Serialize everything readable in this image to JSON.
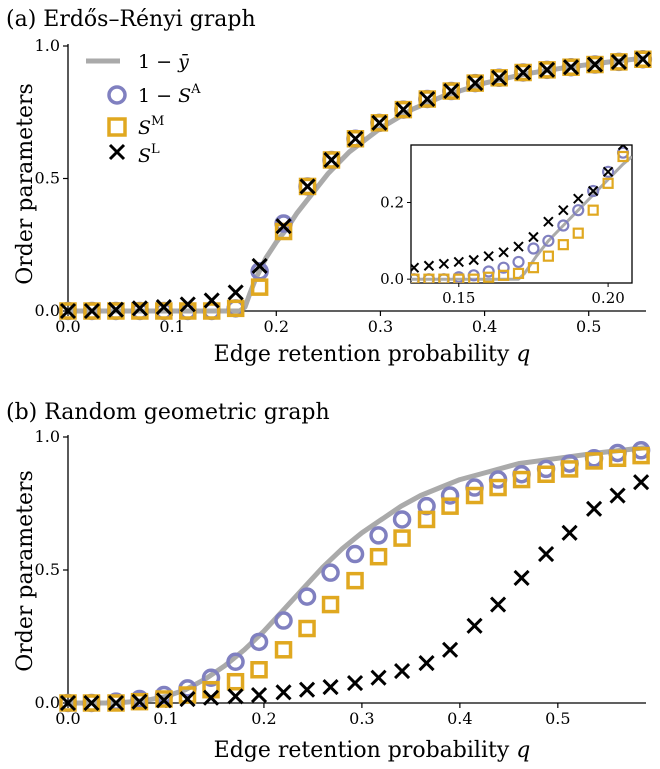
{
  "chart_data": [
    {
      "type": "scatter",
      "panel_title": "(a) Erdős–Rényi graph",
      "xlabel": "Edge retention probability",
      "xlabel_symbol": "q",
      "ylabel": "Order parameters",
      "xlim": [
        0.0,
        0.555
      ],
      "ylim": [
        0.0,
        1.0
      ],
      "xticks": [
        "0.0",
        "0.1",
        "0.2",
        "0.3",
        "0.4",
        "0.5"
      ],
      "yticks": [
        "0.0",
        "0.5",
        "1.0"
      ],
      "legend": {
        "position": "top-left",
        "entries": [
          "1 − ȳ",
          "1 − S^A",
          "S^M",
          "S^L"
        ]
      },
      "series": [
        {
          "name": "1 − ȳ",
          "style": "line",
          "color": "#aaaaaa",
          "x": [
            0.0,
            0.155,
            0.165,
            0.17,
            0.175,
            0.18,
            0.19,
            0.2,
            0.21,
            0.22,
            0.23,
            0.25,
            0.27,
            0.3,
            0.33,
            0.36,
            0.4,
            0.44,
            0.48,
            0.52,
            0.555
          ],
          "y": [
            0.0,
            0.0,
            0.0,
            0.015,
            0.07,
            0.12,
            0.2,
            0.26,
            0.31,
            0.37,
            0.42,
            0.52,
            0.6,
            0.69,
            0.76,
            0.81,
            0.86,
            0.895,
            0.92,
            0.94,
            0.955
          ]
        },
        {
          "name": "1 − S^A",
          "style": "circle",
          "color": "#8080c0",
          "x": [
            0.0,
            0.023,
            0.046,
            0.069,
            0.092,
            0.115,
            0.138,
            0.161,
            0.184,
            0.207,
            0.23,
            0.253,
            0.276,
            0.299,
            0.322,
            0.345,
            0.368,
            0.391,
            0.414,
            0.437,
            0.46,
            0.483,
            0.506,
            0.529,
            0.552
          ],
          "y": [
            0.0,
            0.0,
            0.0,
            0.0,
            0.0,
            0.0,
            0.0,
            0.01,
            0.15,
            0.33,
            0.47,
            0.57,
            0.65,
            0.71,
            0.76,
            0.8,
            0.83,
            0.86,
            0.88,
            0.9,
            0.91,
            0.92,
            0.93,
            0.94,
            0.95
          ]
        },
        {
          "name": "S^M",
          "style": "square",
          "color": "#e0a820",
          "x": [
            0.0,
            0.023,
            0.046,
            0.069,
            0.092,
            0.115,
            0.138,
            0.161,
            0.184,
            0.207,
            0.23,
            0.253,
            0.276,
            0.299,
            0.322,
            0.345,
            0.368,
            0.391,
            0.414,
            0.437,
            0.46,
            0.483,
            0.506,
            0.529,
            0.552
          ],
          "y": [
            0.0,
            0.0,
            0.0,
            0.0,
            0.0,
            0.0,
            0.0,
            0.01,
            0.09,
            0.3,
            0.47,
            0.57,
            0.65,
            0.71,
            0.76,
            0.8,
            0.83,
            0.86,
            0.88,
            0.9,
            0.91,
            0.92,
            0.93,
            0.94,
            0.95
          ]
        },
        {
          "name": "S^L",
          "style": "x",
          "color": "#000000",
          "x": [
            0.0,
            0.023,
            0.046,
            0.069,
            0.092,
            0.115,
            0.138,
            0.161,
            0.184,
            0.207,
            0.23,
            0.253,
            0.276,
            0.299,
            0.322,
            0.345,
            0.368,
            0.391,
            0.414,
            0.437,
            0.46,
            0.483,
            0.506,
            0.529,
            0.552
          ],
          "y": [
            0.0,
            0.0,
            0.005,
            0.01,
            0.015,
            0.025,
            0.04,
            0.07,
            0.17,
            0.32,
            0.47,
            0.57,
            0.65,
            0.71,
            0.76,
            0.8,
            0.83,
            0.86,
            0.88,
            0.9,
            0.91,
            0.92,
            0.93,
            0.94,
            0.95
          ]
        }
      ],
      "inset": {
        "xlim": [
          0.134,
          0.208
        ],
        "ylim": [
          -0.01,
          0.35
        ],
        "xticks": [
          "0.15",
          "0.20"
        ],
        "yticks": [
          "0.0",
          "0.2"
        ],
        "series": [
          {
            "name": "1 − ȳ",
            "style": "line",
            "color": "#aaaaaa",
            "x": [
              0.134,
              0.17,
              0.172,
              0.176,
              0.18,
              0.185,
              0.19,
              0.195,
              0.2,
              0.205,
              0.208
            ],
            "y": [
              0.0,
              0.0,
              0.015,
              0.06,
              0.1,
              0.14,
              0.18,
              0.22,
              0.26,
              0.3,
              0.32
            ]
          },
          {
            "name": "1 − S^A",
            "style": "circle",
            "color": "#8080c0",
            "x": [
              0.135,
              0.14,
              0.145,
              0.15,
              0.155,
              0.16,
              0.165,
              0.17,
              0.175,
              0.18,
              0.185,
              0.19,
              0.195,
              0.2,
              0.205
            ],
            "y": [
              0.0,
              0.0,
              0.0,
              0.005,
              0.01,
              0.02,
              0.03,
              0.045,
              0.08,
              0.1,
              0.14,
              0.18,
              0.23,
              0.28,
              0.33
            ]
          },
          {
            "name": "S^M",
            "style": "square",
            "color": "#e0a820",
            "x": [
              0.135,
              0.14,
              0.145,
              0.15,
              0.155,
              0.16,
              0.165,
              0.17,
              0.175,
              0.18,
              0.185,
              0.19,
              0.195,
              0.2,
              0.205
            ],
            "y": [
              0.0,
              0.0,
              0.0,
              0.0,
              0.0,
              0.005,
              0.01,
              0.015,
              0.03,
              0.06,
              0.09,
              0.12,
              0.18,
              0.25,
              0.32
            ]
          },
          {
            "name": "S^L",
            "style": "x",
            "color": "#000000",
            "x": [
              0.135,
              0.14,
              0.145,
              0.15,
              0.155,
              0.16,
              0.165,
              0.17,
              0.175,
              0.18,
              0.185,
              0.19,
              0.195,
              0.2,
              0.205
            ],
            "y": [
              0.03,
              0.035,
              0.04,
              0.045,
              0.05,
              0.06,
              0.07,
              0.085,
              0.11,
              0.15,
              0.18,
              0.21,
              0.23,
              0.28,
              0.35
            ]
          }
        ]
      }
    },
    {
      "type": "scatter",
      "panel_title": "(b) Random geometric graph",
      "xlabel": "Edge retention probability",
      "xlabel_symbol": "q",
      "ylabel": "Order parameters",
      "xlim": [
        0.0,
        0.59
      ],
      "ylim": [
        0.0,
        1.0
      ],
      "xticks": [
        "0.0",
        "0.1",
        "0.2",
        "0.3",
        "0.4",
        "0.5"
      ],
      "yticks": [
        "0.0",
        "0.5",
        "1.0"
      ],
      "series": [
        {
          "name": "1 − ȳ",
          "style": "line",
          "color": "#aaaaaa",
          "x": [
            0.0,
            0.05,
            0.08,
            0.1,
            0.12,
            0.14,
            0.16,
            0.18,
            0.2,
            0.22,
            0.24,
            0.26,
            0.28,
            0.3,
            0.32,
            0.34,
            0.36,
            0.38,
            0.4,
            0.43,
            0.46,
            0.5,
            0.54,
            0.59
          ],
          "y": [
            0.0,
            0.0,
            0.01,
            0.025,
            0.05,
            0.09,
            0.14,
            0.2,
            0.27,
            0.35,
            0.43,
            0.51,
            0.58,
            0.64,
            0.69,
            0.74,
            0.78,
            0.81,
            0.84,
            0.87,
            0.9,
            0.92,
            0.94,
            0.96
          ]
        },
        {
          "name": "1 − S^A",
          "style": "circle",
          "color": "#8080c0",
          "x": [
            0.0,
            0.024,
            0.049,
            0.073,
            0.098,
            0.122,
            0.146,
            0.171,
            0.195,
            0.22,
            0.244,
            0.268,
            0.293,
            0.317,
            0.341,
            0.366,
            0.39,
            0.415,
            0.439,
            0.463,
            0.488,
            0.512,
            0.537,
            0.561,
            0.585
          ],
          "y": [
            0.0,
            0.0,
            0.005,
            0.015,
            0.03,
            0.055,
            0.095,
            0.155,
            0.23,
            0.31,
            0.4,
            0.49,
            0.56,
            0.63,
            0.69,
            0.74,
            0.78,
            0.81,
            0.84,
            0.86,
            0.88,
            0.9,
            0.92,
            0.94,
            0.95
          ]
        },
        {
          "name": "S^M",
          "style": "square",
          "color": "#e0a820",
          "x": [
            0.0,
            0.024,
            0.049,
            0.073,
            0.098,
            0.122,
            0.146,
            0.171,
            0.195,
            0.22,
            0.244,
            0.268,
            0.293,
            0.317,
            0.341,
            0.366,
            0.39,
            0.415,
            0.439,
            0.463,
            0.488,
            0.512,
            0.537,
            0.561,
            0.585
          ],
          "y": [
            0.0,
            0.0,
            0.0,
            0.005,
            0.015,
            0.03,
            0.05,
            0.08,
            0.125,
            0.2,
            0.28,
            0.37,
            0.46,
            0.55,
            0.62,
            0.69,
            0.74,
            0.78,
            0.81,
            0.84,
            0.86,
            0.88,
            0.91,
            0.92,
            0.93
          ]
        },
        {
          "name": "S^L",
          "style": "x",
          "color": "#000000",
          "x": [
            0.0,
            0.024,
            0.049,
            0.073,
            0.098,
            0.122,
            0.146,
            0.171,
            0.195,
            0.22,
            0.244,
            0.268,
            0.293,
            0.317,
            0.341,
            0.366,
            0.39,
            0.415,
            0.439,
            0.463,
            0.488,
            0.512,
            0.537,
            0.561,
            0.585
          ],
          "y": [
            0.0,
            0.0,
            0.0,
            0.005,
            0.01,
            0.015,
            0.02,
            0.025,
            0.03,
            0.04,
            0.05,
            0.06,
            0.075,
            0.095,
            0.12,
            0.15,
            0.2,
            0.29,
            0.37,
            0.47,
            0.56,
            0.64,
            0.73,
            0.78,
            0.83
          ]
        }
      ]
    }
  ]
}
